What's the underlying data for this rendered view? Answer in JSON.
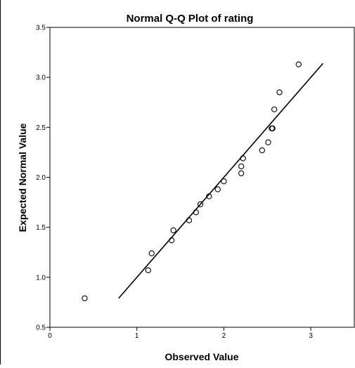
{
  "chart_data": {
    "type": "scatter",
    "title": "Normal Q-Q Plot of rating",
    "xlabel": "Observed Value",
    "ylabel": "Expected Normal Value",
    "xlim": [
      0,
      3.5
    ],
    "ylim": [
      0.5,
      3.5
    ],
    "x_ticks": [
      0,
      1,
      2,
      3
    ],
    "y_ticks": [
      0.5,
      1.0,
      1.5,
      2.0,
      2.5,
      3.0,
      3.5
    ],
    "x_tick_labels": [
      "0",
      "1",
      "2",
      "3"
    ],
    "y_tick_labels": [
      "0.5",
      "1.0",
      "1.5",
      "2.0",
      "2.5",
      "3.0",
      "3.5"
    ],
    "grid": false,
    "legend": "none",
    "points": [
      {
        "x": 0.4,
        "y": 0.79
      },
      {
        "x": 1.13,
        "y": 1.07
      },
      {
        "x": 1.17,
        "y": 1.24
      },
      {
        "x": 1.4,
        "y": 1.37
      },
      {
        "x": 1.42,
        "y": 1.47
      },
      {
        "x": 1.6,
        "y": 1.57
      },
      {
        "x": 1.68,
        "y": 1.65
      },
      {
        "x": 1.73,
        "y": 1.73
      },
      {
        "x": 1.83,
        "y": 1.81
      },
      {
        "x": 1.93,
        "y": 1.88
      },
      {
        "x": 2.0,
        "y": 1.96
      },
      {
        "x": 2.2,
        "y": 2.04
      },
      {
        "x": 2.2,
        "y": 2.11
      },
      {
        "x": 2.22,
        "y": 2.19
      },
      {
        "x": 2.44,
        "y": 2.27
      },
      {
        "x": 2.51,
        "y": 2.35
      },
      {
        "x": 2.55,
        "y": 2.49
      },
      {
        "x": 2.56,
        "y": 2.49
      },
      {
        "x": 2.58,
        "y": 2.68
      },
      {
        "x": 2.64,
        "y": 2.85
      },
      {
        "x": 2.86,
        "y": 3.13
      }
    ],
    "reference_line": {
      "x": [
        0.79,
        3.14
      ],
      "y": [
        0.79,
        3.14
      ]
    }
  }
}
